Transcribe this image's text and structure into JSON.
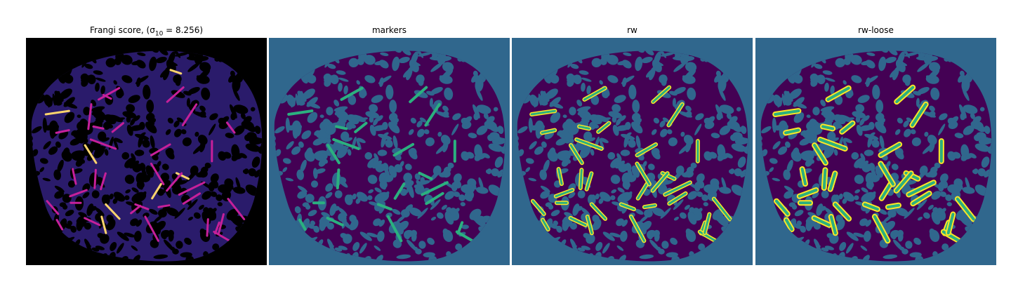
{
  "panels": [
    {
      "title": "Frangi score, ",
      "title_math": "(σ",
      "title_sub": "10",
      "title_tail": " = 8.256)",
      "background": "#000000",
      "blob": "#2a1b6b",
      "holes": "#000000",
      "vessel": "#c6209a",
      "highlight": "#fcd46d"
    },
    {
      "title": "markers",
      "background": "#30678d",
      "blob": "#440154",
      "holes": "#30678d",
      "vessel": "#2bb07f"
    },
    {
      "title": "rw",
      "background": "#30678d",
      "blob": "#440154",
      "holes": "#30678d",
      "vessel": "#2bb07f",
      "highlight": "#fde725"
    },
    {
      "title": "rw-loose",
      "background": "#30678d",
      "blob": "#440154",
      "holes": "#30678d",
      "vessel": "#2bb07f",
      "highlight": "#fde725"
    }
  ]
}
